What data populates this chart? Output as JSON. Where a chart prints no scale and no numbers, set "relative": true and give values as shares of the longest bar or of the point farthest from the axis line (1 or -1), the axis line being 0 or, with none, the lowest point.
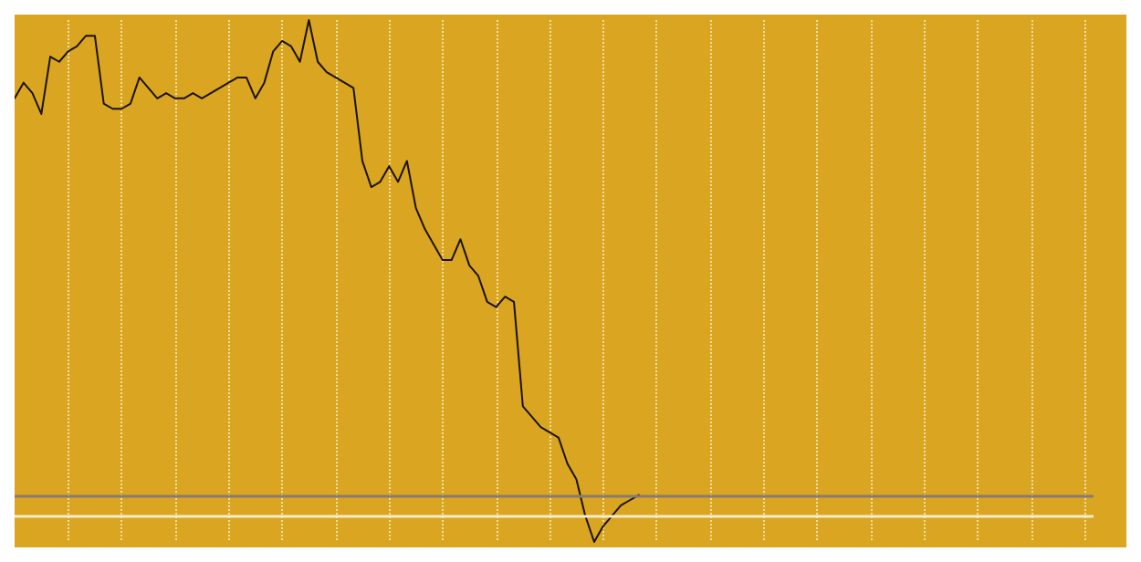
{
  "chart_data": {
    "type": "line",
    "relative": true,
    "color": "#1a1208",
    "grid": "x",
    "line_style": "solid",
    "categories": [
      null,
      null,
      null,
      null,
      null,
      null,
      null,
      null,
      null,
      null,
      null,
      null,
      null,
      null,
      null,
      null,
      null,
      null,
      null,
      null,
      null,
      null,
      null,
      null,
      null,
      null,
      null,
      null,
      null,
      null,
      null,
      null,
      null,
      null,
      null,
      null,
      null,
      null,
      null,
      null,
      null,
      null,
      null,
      null,
      null,
      null,
      null,
      null,
      null,
      null,
      null,
      null,
      null,
      null,
      null,
      null,
      null,
      null,
      null,
      null,
      null,
      null,
      null,
      null,
      null,
      null,
      null,
      null,
      null,
      null,
      null,
      null,
      null,
      null,
      null,
      null,
      null,
      null,
      null,
      null,
      null,
      null,
      null,
      null,
      null,
      null,
      null,
      null,
      null,
      null,
      null,
      null,
      null,
      null,
      null,
      null,
      null,
      null,
      null,
      null,
      null,
      null,
      null,
      null,
      null,
      null,
      null,
      null,
      null,
      null,
      null,
      null,
      null,
      null,
      null,
      null,
      null,
      null,
      null,
      null,
      null,
      null
    ],
    "values": [
      0.85,
      0.88,
      0.86,
      0.82,
      0.93,
      0.92,
      0.94,
      0.95,
      0.97,
      0.97,
      0.84,
      0.83,
      0.83,
      0.84,
      0.89,
      0.87,
      0.85,
      0.86,
      0.85,
      0.85,
      0.86,
      0.85,
      0.86,
      0.87,
      0.88,
      0.89,
      0.89,
      0.85,
      0.88,
      0.94,
      0.96,
      0.95,
      0.92,
      1,
      0.92,
      0.9,
      0.89,
      0.88,
      0.87,
      0.73,
      0.68,
      0.69,
      0.72,
      0.69,
      0.73,
      0.64,
      0.6,
      0.57,
      0.54,
      0.54,
      0.58,
      0.53,
      0.51,
      0.46,
      0.45,
      0.47,
      0.46,
      0.26,
      0.24,
      0.22,
      0.21,
      0.2,
      0.15,
      0.12,
      0.05,
      0,
      0.03,
      0.05,
      0.07,
      0.08,
      0.09,
      null,
      null,
      null,
      null,
      null,
      null,
      null,
      null,
      null,
      null,
      null,
      null,
      null,
      null,
      null,
      null,
      null,
      null,
      null,
      null,
      null,
      null,
      null,
      null,
      null,
      null,
      null,
      null,
      null,
      null,
      null,
      null,
      null,
      null,
      null,
      null,
      null,
      null,
      null,
      null,
      null,
      null,
      null,
      null,
      null,
      null,
      null,
      null,
      null,
      null,
      null
    ],
    "ref_lines": [
      {
        "axis": "y",
        "value": 0.09,
        "color": "#8a7a70"
      },
      {
        "axis": "y",
        "value": 0.05,
        "color": "#f8ecc8"
      }
    ]
  }
}
